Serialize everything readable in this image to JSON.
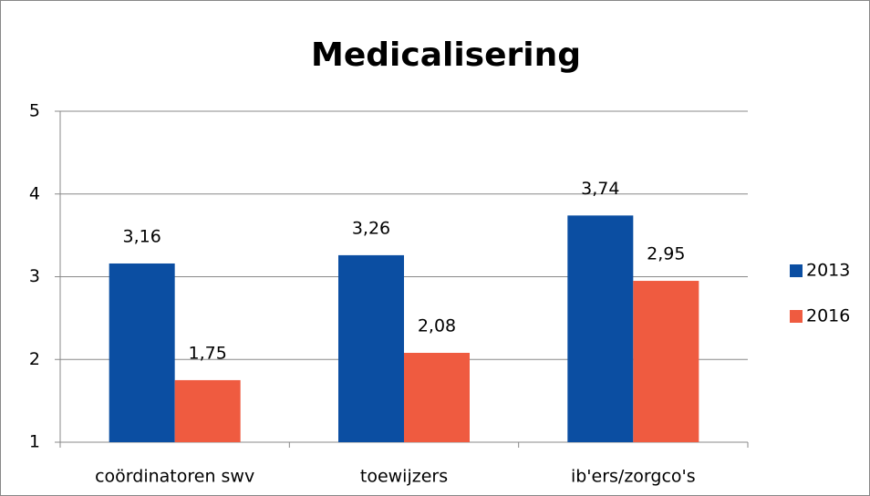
{
  "chart_data": {
    "type": "bar",
    "title": "Medicalisering",
    "categories": [
      "coördinatoren swv",
      "toewijzers",
      "ib'ers/zorgco's"
    ],
    "series": [
      {
        "name": "2013",
        "color": "#0b4ea2",
        "values": [
          3.16,
          3.26,
          3.74
        ],
        "value_labels": [
          "3,16",
          "3,26",
          "3,74"
        ]
      },
      {
        "name": "2016",
        "color": "#ef5b40",
        "values": [
          1.75,
          2.08,
          2.95
        ],
        "value_labels": [
          "1,75",
          "2,08",
          "2,95"
        ]
      }
    ],
    "ylim": [
      1,
      5
    ],
    "yticks": [
      1,
      2,
      3,
      4,
      5
    ],
    "grid": true,
    "legend": "right"
  }
}
